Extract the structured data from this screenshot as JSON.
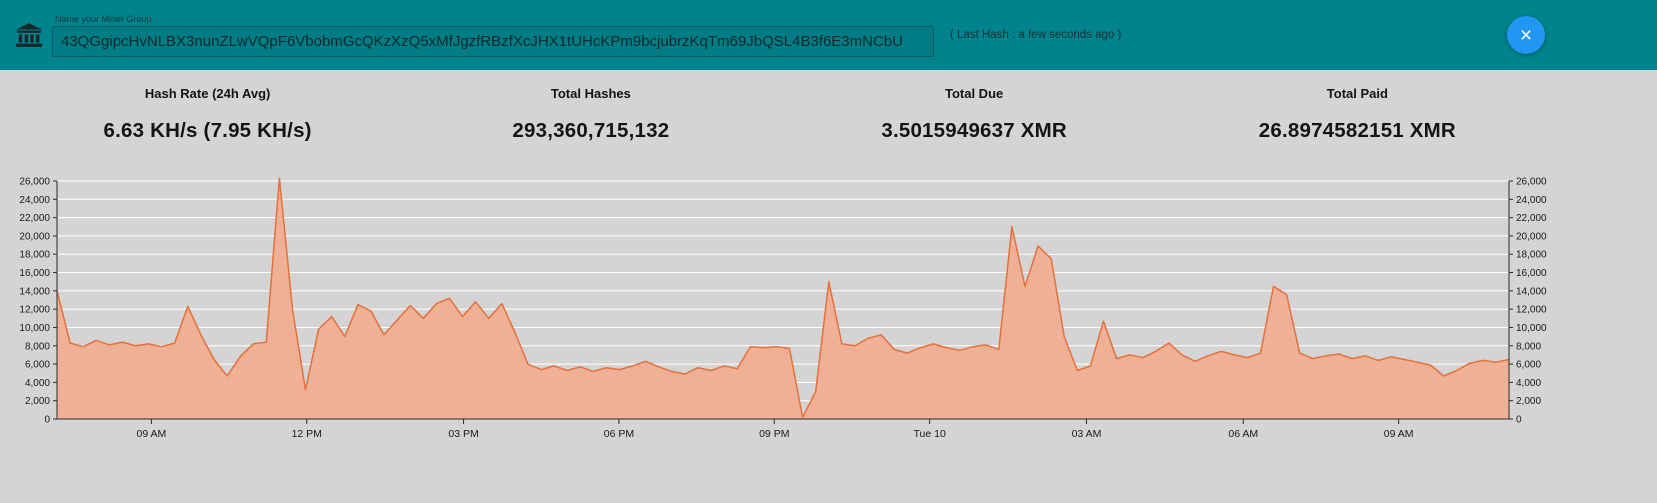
{
  "header": {
    "input_label": "Name your Miner Group",
    "address_value": "43QGgipcHvNLBX3nunZLwVQpF6VbobmGcQKzXzQ5xMfJgzfRBzfXcJHX1tUHcKPm9bcjubrzKqTm69JbQSL4B3f6E3mNCbU",
    "last_hash": "( Last Hash : a few seconds ago )",
    "close_label": "×",
    "colors": {
      "bar": "#00838c",
      "close_button": "#2196f3"
    }
  },
  "stats": {
    "items": [
      {
        "label": "Hash Rate (24h Avg)",
        "value": "6.63 KH/s (7.95 KH/s)"
      },
      {
        "label": "Total Hashes",
        "value": "293,360,715,132"
      },
      {
        "label": "Total Due",
        "value": "3.5015949637 XMR"
      },
      {
        "label": "Total Paid",
        "value": "26.8974582151 XMR"
      }
    ]
  },
  "chart_data": {
    "type": "area",
    "title": "",
    "xlabel": "",
    "ylabel": "",
    "ylim": [
      0,
      26000
    ],
    "grid": "horizontal-white",
    "yticks": [
      0,
      2000,
      4000,
      6000,
      8000,
      10000,
      12000,
      14000,
      16000,
      18000,
      20000,
      22000,
      24000,
      26000
    ],
    "xticks": [
      {
        "pos": 0.065,
        "label": "09 AM"
      },
      {
        "pos": 0.172,
        "label": "12 PM"
      },
      {
        "pos": 0.28,
        "label": "03 PM"
      },
      {
        "pos": 0.387,
        "label": "06 PM"
      },
      {
        "pos": 0.494,
        "label": "09 PM"
      },
      {
        "pos": 0.601,
        "label": "Tue 10"
      },
      {
        "pos": 0.709,
        "label": "03 AM"
      },
      {
        "pos": 0.817,
        "label": "06 AM"
      },
      {
        "pos": 0.924,
        "label": "09 AM"
      }
    ],
    "values": [
      14000,
      8300,
      7900,
      8600,
      8100,
      8400,
      8000,
      8200,
      7900,
      8300,
      12300,
      9200,
      6500,
      4700,
      6800,
      8200,
      8400,
      26300,
      12000,
      3200,
      9800,
      11200,
      9000,
      12500,
      11800,
      9200,
      10800,
      12400,
      11000,
      12600,
      13200,
      11200,
      12800,
      11000,
      12600,
      9500,
      6000,
      5400,
      5800,
      5300,
      5700,
      5200,
      5600,
      5400,
      5800,
      6300,
      5700,
      5200,
      4900,
      5600,
      5300,
      5800,
      5500,
      7900,
      7800,
      7900,
      7700,
      200,
      3000,
      15000,
      8200,
      8000,
      8800,
      9200,
      7600,
      7200,
      7800,
      8200,
      7800,
      7500,
      7900,
      8100,
      7600,
      21000,
      14500,
      18900,
      17500,
      9000,
      5300,
      5800,
      10700,
      6600,
      7000,
      6700,
      7400,
      8300,
      7000,
      6300,
      6900,
      7400,
      7000,
      6700,
      7200,
      14500,
      13600,
      7200,
      6600,
      6900,
      7100,
      6600,
      6900,
      6400,
      6800,
      6500,
      6200,
      5900,
      4700,
      5300,
      6100,
      6400,
      6200,
      6500
    ],
    "colors": {
      "line": "#e4713b",
      "fill": "#efb095",
      "grid": "#ffffff",
      "axis": "#2a2a2a"
    }
  }
}
